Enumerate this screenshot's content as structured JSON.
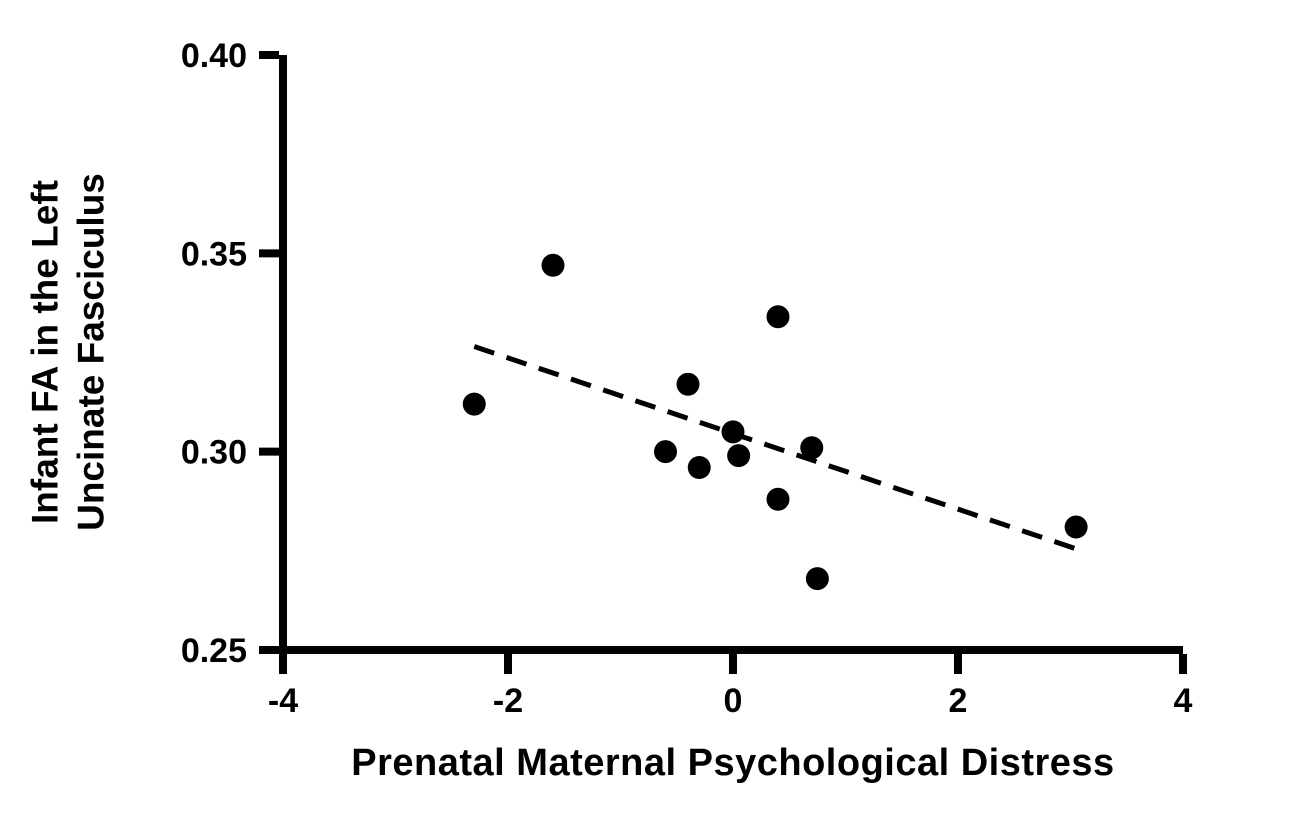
{
  "chart_data": {
    "type": "scatter",
    "title": "",
    "xlabel": "Prenatal Maternal Psychological Distress",
    "ylabel": "Infant FA in the Left Uncinate Fasciculus",
    "ylabel_lines": [
      "Infant FA in the Left",
      "Uncinate Fasciculus"
    ],
    "xlim": [
      -4,
      4
    ],
    "ylim": [
      0.25,
      0.4
    ],
    "x_ticks": [
      -4,
      -2,
      0,
      2,
      4
    ],
    "x_tick_labels": [
      "-4",
      "-2",
      "0",
      "2",
      "4"
    ],
    "y_ticks": [
      0.25,
      0.3,
      0.35,
      0.4
    ],
    "y_tick_labels": [
      "0.25",
      "0.30",
      "0.35",
      "0.40"
    ],
    "grid": false,
    "legend": null,
    "points": [
      {
        "x": -2.3,
        "y": 0.312
      },
      {
        "x": -1.6,
        "y": 0.347
      },
      {
        "x": -0.6,
        "y": 0.3
      },
      {
        "x": -0.4,
        "y": 0.317
      },
      {
        "x": -0.3,
        "y": 0.296
      },
      {
        "x": 0.0,
        "y": 0.305
      },
      {
        "x": 0.05,
        "y": 0.299
      },
      {
        "x": 0.4,
        "y": 0.334
      },
      {
        "x": 0.4,
        "y": 0.288
      },
      {
        "x": 0.7,
        "y": 0.301
      },
      {
        "x": 0.75,
        "y": 0.268
      },
      {
        "x": 3.05,
        "y": 0.281
      }
    ],
    "trendline": {
      "x1": -2.3,
      "y1": 0.3265,
      "x2": 3.05,
      "y2": 0.2755,
      "style": "dashed"
    },
    "colors": {
      "points": "#000000",
      "line": "#000000",
      "axis": "#000000",
      "text": "#000000",
      "background": "#ffffff"
    }
  }
}
